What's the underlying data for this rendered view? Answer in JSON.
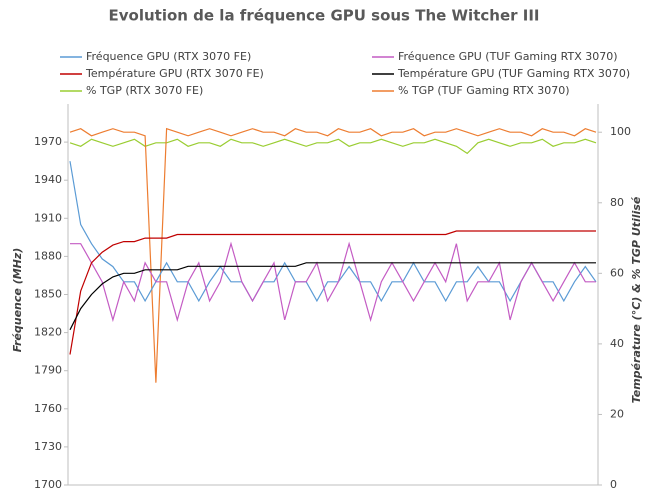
{
  "chart_data": {
    "type": "line",
    "title": "Evolution de la fréquence GPU sous The Witcher III",
    "y_label": "Fréquence (MHz)",
    "y2_label": "Température (°C) & % TGP Utilisé",
    "ylim": [
      1700,
      2000
    ],
    "yticks": [
      1700,
      1730,
      1760,
      1790,
      1820,
      1850,
      1880,
      1910,
      1940,
      1970
    ],
    "y2lim": [
      0,
      108
    ],
    "y2ticks": [
      0,
      20,
      40,
      60,
      80,
      100
    ],
    "grid": false,
    "legend": "top",
    "series": [
      {
        "name": "Fréquence GPU (RTX 3070 FE)",
        "color": "#5b9bd5",
        "axis": "y",
        "values": [
          1955,
          1905,
          1890,
          1878,
          1872,
          1860,
          1860,
          1845,
          1860,
          1875,
          1860,
          1860,
          1845,
          1860,
          1872,
          1860,
          1860,
          1845,
          1860,
          1860,
          1875,
          1860,
          1860,
          1845,
          1860,
          1860,
          1872,
          1860,
          1860,
          1845,
          1860,
          1860,
          1875,
          1860,
          1860,
          1845,
          1860,
          1860,
          1872,
          1860,
          1860,
          1845,
          1860,
          1875,
          1860,
          1860,
          1845,
          1860,
          1872,
          1860
        ]
      },
      {
        "name": "Fréquence GPU (TUF Gaming RTX 3070)",
        "color": "#c45cc4",
        "axis": "y",
        "values": [
          1890,
          1890,
          1875,
          1860,
          1830,
          1860,
          1845,
          1875,
          1860,
          1860,
          1830,
          1860,
          1875,
          1845,
          1860,
          1890,
          1860,
          1845,
          1860,
          1875,
          1830,
          1860,
          1860,
          1875,
          1845,
          1860,
          1890,
          1860,
          1830,
          1860,
          1875,
          1860,
          1845,
          1860,
          1875,
          1860,
          1890,
          1845,
          1860,
          1860,
          1875,
          1830,
          1860,
          1875,
          1860,
          1845,
          1860,
          1875,
          1860,
          1860
        ]
      },
      {
        "name": "Température GPU (RTX 3070 FE)",
        "color": "#c00000",
        "axis": "y2",
        "values": [
          37,
          55,
          63,
          66,
          68,
          69,
          69,
          70,
          70,
          70,
          71,
          71,
          71,
          71,
          71,
          71,
          71,
          71,
          71,
          71,
          71,
          71,
          71,
          71,
          71,
          71,
          71,
          71,
          71,
          71,
          71,
          71,
          71,
          71,
          71,
          71,
          72,
          72,
          72,
          72,
          72,
          72,
          72,
          72,
          72,
          72,
          72,
          72,
          72,
          72
        ]
      },
      {
        "name": "Température GPU (TUF Gaming RTX 3070)",
        "color": "#000000",
        "axis": "y2",
        "values": [
          44,
          50,
          54,
          57,
          59,
          60,
          60,
          61,
          61,
          61,
          61,
          62,
          62,
          62,
          62,
          62,
          62,
          62,
          62,
          62,
          62,
          62,
          63,
          63,
          63,
          63,
          63,
          63,
          63,
          63,
          63,
          63,
          63,
          63,
          63,
          63,
          63,
          63,
          63,
          63,
          63,
          63,
          63,
          63,
          63,
          63,
          63,
          63,
          63,
          63
        ]
      },
      {
        "name": "% TGP (RTX 3070 FE)",
        "color": "#9acd32",
        "axis": "y2",
        "values": [
          97,
          96,
          98,
          97,
          96,
          97,
          98,
          96,
          97,
          97,
          98,
          96,
          97,
          97,
          96,
          98,
          97,
          97,
          96,
          97,
          98,
          97,
          96,
          97,
          97,
          98,
          96,
          97,
          97,
          98,
          97,
          96,
          97,
          97,
          98,
          97,
          96,
          94,
          97,
          98,
          97,
          96,
          97,
          97,
          98,
          96,
          97,
          97,
          98,
          97
        ]
      },
      {
        "name": "% TGP (TUF Gaming RTX 3070)",
        "color": "#ed7d31",
        "axis": "y2",
        "values": [
          100,
          101,
          99,
          100,
          101,
          100,
          100,
          99,
          29,
          101,
          100,
          99,
          100,
          101,
          100,
          99,
          100,
          101,
          100,
          100,
          99,
          101,
          100,
          100,
          99,
          101,
          100,
          100,
          101,
          99,
          100,
          100,
          101,
          99,
          100,
          100,
          101,
          100,
          99,
          100,
          101,
          100,
          100,
          99,
          101,
          100,
          100,
          99,
          101,
          100
        ]
      }
    ]
  }
}
